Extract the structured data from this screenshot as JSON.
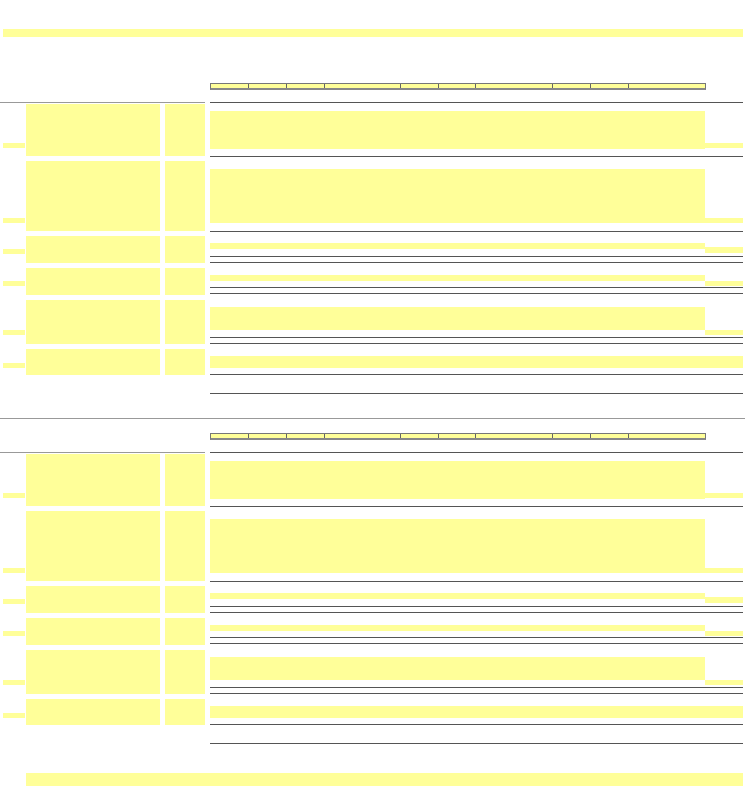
{
  "colors": {
    "background": "#ffffff",
    "placeholder": "#ffff99",
    "rule_dark": "#555555",
    "rule_light": "#999999"
  },
  "sections": [
    {
      "header_columns": 10,
      "rows": 6
    },
    {
      "header_columns": 10,
      "rows": 6
    }
  ]
}
